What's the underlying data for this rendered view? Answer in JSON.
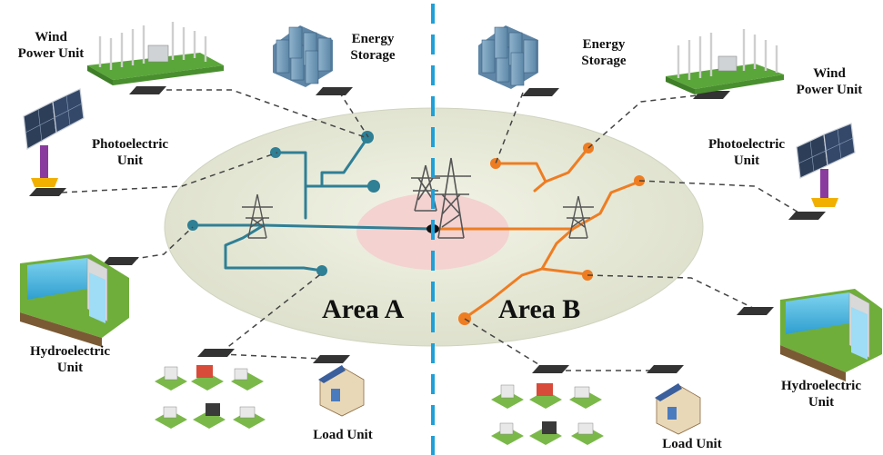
{
  "areas": {
    "a": "Area A",
    "b": "Area B"
  },
  "labels": {
    "wind_a": "Wind\nPower Unit",
    "storage_a": "Energy\nStorage",
    "photo_a": "Photoelectric\nUnit",
    "hydro_a": "Hydroelectric\nUnit",
    "load_a": "Load Unit",
    "storage_b": "Energy\nStorage",
    "wind_b": "Wind\nPower Unit",
    "photo_b": "Photoelectric\nUnit",
    "hydro_b": "Hydroelectric\nUnit",
    "load_b": "Load Unit"
  },
  "colors": {
    "area_a_lines": "#2f7f95",
    "area_b_lines": "#ee7d22",
    "divider": "#1fa0d8",
    "ellipse": "#e6e8d8",
    "center_zone": "#f4d0cf",
    "dashed": "#444444"
  }
}
